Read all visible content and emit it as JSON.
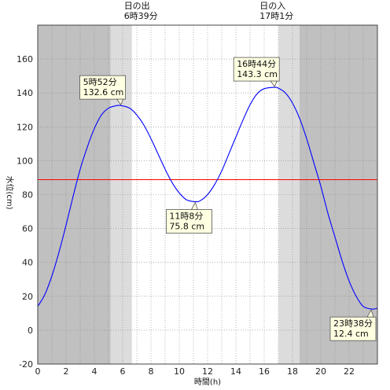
{
  "chart_data": {
    "type": "line",
    "title": "",
    "xlabel": "時間(h)",
    "ylabel": "水位(cm)",
    "xlim": [
      0,
      24
    ],
    "ylim": [
      -20,
      180
    ],
    "x_ticks": [
      0,
      2,
      4,
      6,
      8,
      10,
      12,
      14,
      16,
      18,
      20,
      22
    ],
    "x_tick_labels": [
      "0",
      "2",
      "4",
      "6",
      "8",
      "10",
      "12",
      "14",
      "16",
      "18",
      "20",
      "22"
    ],
    "y_ticks": [
      -20,
      0,
      20,
      40,
      60,
      80,
      100,
      120,
      140,
      160
    ],
    "y_tick_labels": [
      "-20",
      "0",
      "20",
      "40",
      "60",
      "80",
      "100",
      "120",
      "140",
      "160"
    ],
    "reference_line": {
      "value": 88.8,
      "color": "#ff0000"
    },
    "series": [
      {
        "color": "#0000ff",
        "x": [
          0,
          0.5,
          1,
          1.5,
          2,
          2.5,
          3,
          3.5,
          4,
          4.5,
          5,
          5.5,
          5.867,
          6.5,
          7,
          7.5,
          8,
          8.5,
          9,
          9.5,
          10,
          10.5,
          11.133,
          11.5,
          12,
          12.5,
          13,
          13.5,
          14,
          14.5,
          15,
          15.5,
          16,
          16.733,
          17,
          17.5,
          18,
          18.5,
          19,
          19.5,
          20,
          20.5,
          21,
          21.5,
          22,
          22.5,
          23,
          23.633,
          24
        ],
        "y": [
          14,
          21,
          32,
          46,
          62,
          79,
          95,
          108,
          119,
          127,
          131,
          132.4,
          132.6,
          131,
          127,
          121,
          113,
          104,
          95,
          87,
          81,
          77,
          75.8,
          76.5,
          80,
          86,
          94,
          104,
          114,
          124,
          133,
          139.5,
          142.5,
          143.3,
          142.8,
          140,
          134,
          125,
          113,
          99,
          85,
          69,
          55,
          41,
          29,
          20,
          14,
          12.4,
          13
        ]
      }
    ],
    "daylight": {
      "sunrise_label": "日の出",
      "sunrise_time": "6時39分",
      "sunrise_hour": 6.65,
      "sunset_label": "日の入",
      "sunset_time": "17時1分",
      "sunset_hour": 17.017,
      "twilight_start": 5.133,
      "twilight_end": 18.5
    },
    "annotations": [
      {
        "id": "peak1",
        "time": "5時52分",
        "level": "132.6 cm",
        "x": 5.867,
        "y": 132.6,
        "side": "above"
      },
      {
        "id": "trough1",
        "time": "11時8分",
        "level": "75.8 cm",
        "x": 11.133,
        "y": 75.8,
        "side": "below"
      },
      {
        "id": "peak2",
        "time": "16時44分",
        "level": "143.3 cm",
        "x": 16.733,
        "y": 143.3,
        "side": "above"
      },
      {
        "id": "trough2",
        "time": "23時38分",
        "level": "12.4 cm",
        "x": 23.633,
        "y": 12.4,
        "side": "below"
      }
    ],
    "grid": true,
    "colors": {
      "night": "#c0c0c0",
      "twilight": "#dcdcdc",
      "day": "#ffffff",
      "callout_bg": "#ffffe1"
    }
  }
}
